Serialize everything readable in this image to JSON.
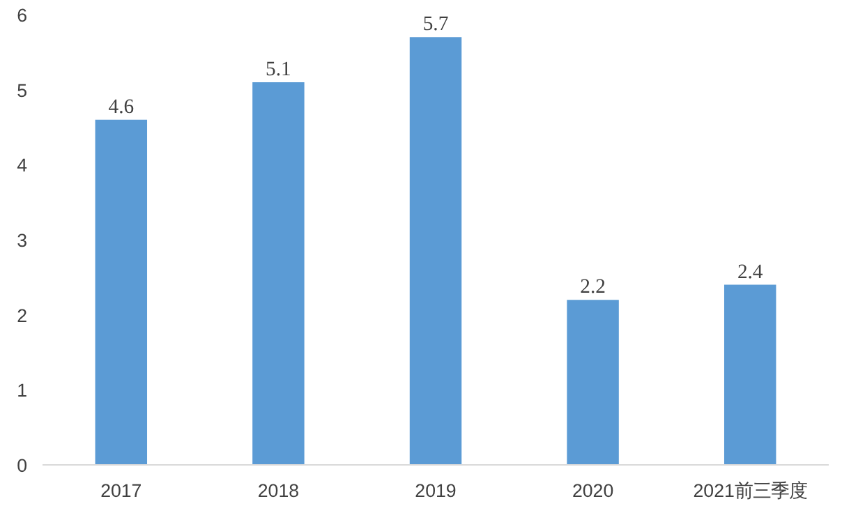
{
  "chart_data": {
    "type": "bar",
    "categories": [
      "2017",
      "2018",
      "2019",
      "2020",
      "2021前三季度"
    ],
    "values": [
      4.6,
      5.1,
      5.7,
      2.2,
      2.4
    ],
    "color": "#5b9bd5",
    "ylim": [
      0,
      6
    ],
    "yticks": [
      0,
      1,
      2,
      3,
      4,
      5,
      6
    ],
    "grid": false,
    "data_labels": true
  }
}
